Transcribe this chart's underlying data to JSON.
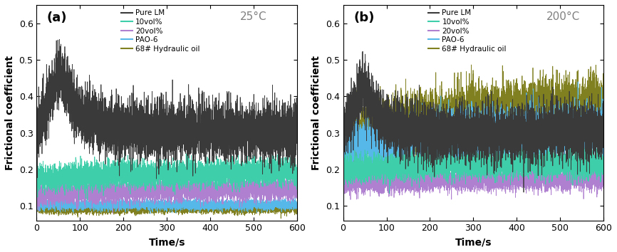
{
  "colors": {
    "pure_lm": "#3a3a3a",
    "vol10": "#3ecfaa",
    "vol20": "#b080d0",
    "pao6": "#55b8e8",
    "hyd68": "#808020"
  },
  "legend_labels": [
    "Pure LM",
    "10vol%",
    "20vol%",
    "PAO-6",
    "68# Hydraulic oil"
  ],
  "xlabel": "Time/s",
  "ylabel": "Frictional coefficient",
  "xlim": [
    0,
    600
  ],
  "ylim": [
    0.06,
    0.65
  ],
  "yticks": [
    0.1,
    0.2,
    0.3,
    0.4,
    0.5,
    0.6
  ],
  "xticks": [
    0,
    100,
    200,
    300,
    400,
    500,
    600
  ],
  "panel_a_label": "(a)",
  "panel_b_label": "(b)",
  "temp_a": "25°C",
  "temp_b": "200°C",
  "panel_a": {
    "pure_lm": {
      "peak": 0.47,
      "peak_t": 55,
      "steady": 0.305,
      "decay_tau": 40,
      "noise": 0.038
    },
    "vol10": {
      "init": 0.175,
      "steady": 0.195,
      "rise_tau": 300,
      "noise": 0.018
    },
    "vol20": {
      "init": 0.13,
      "steady": 0.148,
      "rise_tau": 300,
      "noise": 0.015
    },
    "pao6": {
      "init": 0.103,
      "steady": 0.103,
      "rise_tau": 300,
      "noise": 0.007
    },
    "hyd68": {
      "init": 0.09,
      "steady": 0.092,
      "rise_tau": 300,
      "noise": 0.006
    }
  },
  "panel_b": {
    "pure_lm": {
      "peak": 0.43,
      "peak_t": 50,
      "steady": 0.3,
      "decay_tau": 35,
      "noise": 0.038
    },
    "vol10": {
      "init": 0.2,
      "steady": 0.218,
      "rise_tau": 300,
      "noise": 0.018
    },
    "vol20": {
      "init": 0.165,
      "steady": 0.175,
      "rise_tau": 300,
      "noise": 0.015
    },
    "pao6": {
      "init": 0.26,
      "steady": 0.315,
      "rise_tau": 350,
      "noise": 0.035
    },
    "hyd68": {
      "init": 0.28,
      "steady": 0.395,
      "rise_tau": 350,
      "noise": 0.042
    }
  },
  "background_color": "#ffffff",
  "lw": 0.55,
  "n_points": 6000,
  "seed_a": 42,
  "seed_b": 99
}
